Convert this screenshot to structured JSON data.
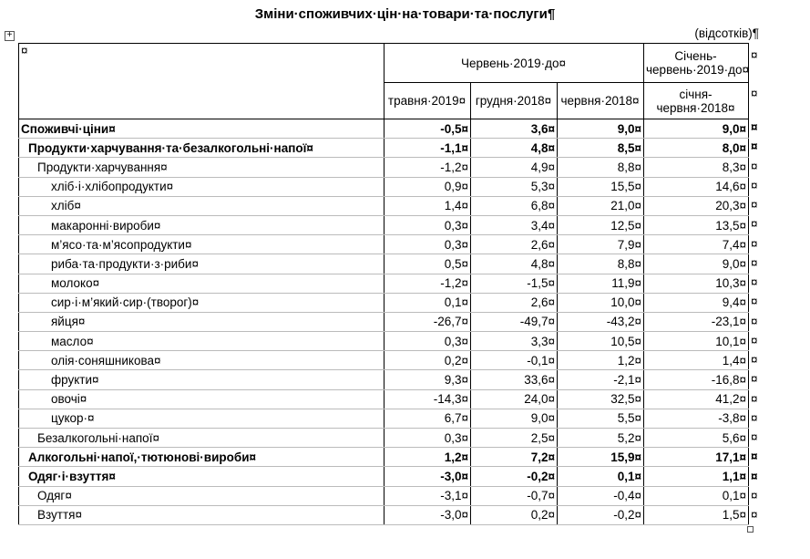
{
  "header": {
    "title": "Зміни·споживчих·цін·на·товари·та·послуги¶",
    "unit": "(відсотків)¶"
  },
  "table": {
    "corner": "¤",
    "group_header": "Червень·2019·до¤",
    "last_group_header": "Січень-червень·2019·до¤",
    "columns": [
      "травня·2019¤",
      "грудня·2018¤",
      "червня·2018¤",
      "січня-червня·2018¤"
    ],
    "row_end_mark": "¤",
    "rows": [
      {
        "label": "Споживчі·ціни¤",
        "level": 0,
        "bold": true,
        "cells": [
          "-0,5¤",
          "3,6¤",
          "9,0¤",
          "9,0¤"
        ]
      },
      {
        "label": "Продукти·харчування·та·безалкогольні·напої¤",
        "level": 1,
        "bold": true,
        "cells": [
          "-1,1¤",
          "4,8¤",
          "8,5¤",
          "8,0¤"
        ]
      },
      {
        "label": "Продукти·харчування¤",
        "level": 2,
        "bold": false,
        "cells": [
          "-1,2¤",
          "4,9¤",
          "8,8¤",
          "8,3¤"
        ]
      },
      {
        "label": "хліб·і·хлібопродукти¤",
        "level": 3,
        "bold": false,
        "cells": [
          "0,9¤",
          "5,3¤",
          "15,5¤",
          "14,6¤"
        ]
      },
      {
        "label": "хліб¤",
        "level": 3,
        "bold": false,
        "cells": [
          "1,4¤",
          "6,8¤",
          "21,0¤",
          "20,3¤"
        ]
      },
      {
        "label": "макаронні·вироби¤",
        "level": 3,
        "bold": false,
        "cells": [
          "0,3¤",
          "3,4¤",
          "12,5¤",
          "13,5¤"
        ]
      },
      {
        "label": "м’ясо·та·м’ясопродукти¤",
        "level": 3,
        "bold": false,
        "cells": [
          "0,3¤",
          "2,6¤",
          "7,9¤",
          "7,4¤"
        ]
      },
      {
        "label": "риба·та·продукти·з·риби¤",
        "level": 3,
        "bold": false,
        "cells": [
          "0,5¤",
          "4,8¤",
          "8,8¤",
          "9,0¤"
        ]
      },
      {
        "label": "молоко¤",
        "level": 3,
        "bold": false,
        "cells": [
          "-1,2¤",
          "-1,5¤",
          "11,9¤",
          "10,3¤"
        ]
      },
      {
        "label": "сир·і·м’який·сир·(творог)¤",
        "level": 3,
        "bold": false,
        "cells": [
          "0,1¤",
          "2,6¤",
          "10,0¤",
          "9,4¤"
        ]
      },
      {
        "label": "яйця¤",
        "level": 3,
        "bold": false,
        "cells": [
          "-26,7¤",
          "-49,7¤",
          "-43,2¤",
          "-23,1¤"
        ]
      },
      {
        "label": "масло¤",
        "level": 3,
        "bold": false,
        "cells": [
          "0,3¤",
          "3,3¤",
          "10,5¤",
          "10,1¤"
        ]
      },
      {
        "label": "олія·соняшникова¤",
        "level": 3,
        "bold": false,
        "cells": [
          "0,2¤",
          "-0,1¤",
          "1,2¤",
          "1,4¤"
        ]
      },
      {
        "label": "фрукти¤",
        "level": 3,
        "bold": false,
        "cells": [
          "9,3¤",
          "33,6¤",
          "-2,1¤",
          "-16,8¤"
        ]
      },
      {
        "label": "овочі¤",
        "level": 3,
        "bold": false,
        "cells": [
          "-14,3¤",
          "24,0¤",
          "32,5¤",
          "41,2¤"
        ]
      },
      {
        "label": "цукор·¤",
        "level": 3,
        "bold": false,
        "cells": [
          "6,7¤",
          "9,0¤",
          "5,5¤",
          "-3,8¤"
        ]
      },
      {
        "label": "Безалкогольні·напої¤",
        "level": 2,
        "bold": false,
        "cells": [
          "0,3¤",
          "2,5¤",
          "5,2¤",
          "5,6¤"
        ]
      },
      {
        "label": "Алкогольні·напої,·тютюнові·вироби¤",
        "level": 1,
        "bold": true,
        "cells": [
          "1,2¤",
          "7,2¤",
          "15,9¤",
          "17,1¤"
        ]
      },
      {
        "label": "Одяг·і·взуття¤",
        "level": 1,
        "bold": true,
        "cells": [
          "-3,0¤",
          "-0,2¤",
          "0,1¤",
          "1,1¤"
        ]
      },
      {
        "label": "Одяг¤",
        "level": 2,
        "bold": false,
        "cells": [
          "-3,1¤",
          "-0,7¤",
          "-0,4¤",
          "0,1¤"
        ]
      },
      {
        "label": "Взуття¤",
        "level": 2,
        "bold": false,
        "cells": [
          "-3,0¤",
          "0,2¤",
          "-0,2¤",
          "1,5¤"
        ]
      }
    ]
  }
}
